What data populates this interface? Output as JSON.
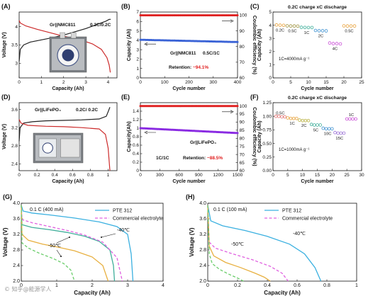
{
  "watermark": "© 知乎@能源学人",
  "chart_data": [
    {
      "id": "A",
      "panel_label": "(A)",
      "type": "line",
      "xlabel": "Capacity (Ah)",
      "ylabel": "Voltage (V)",
      "xlim": [
        0,
        4.4
      ],
      "ylim": [
        2.6,
        4.4
      ],
      "xticks": [
        0,
        1,
        2,
        3,
        4
      ],
      "yticks": [
        3.0,
        3.5,
        4.0
      ],
      "annotations": [
        "Gr||NMC811",
        "0.2C/0.2C"
      ],
      "series": [
        {
          "role": "charge",
          "color": "#222222",
          "x": [
            0,
            0.05,
            0.2,
            0.5,
            1.0,
            1.5,
            2.0,
            2.5,
            3.0,
            3.5,
            3.9,
            4.05,
            4.12
          ],
          "y": [
            3.05,
            3.38,
            3.5,
            3.58,
            3.64,
            3.7,
            3.77,
            3.86,
            3.95,
            4.06,
            4.15,
            4.2,
            4.2
          ]
        },
        {
          "role": "discharge",
          "color": "#cc2a2a",
          "x": [
            0,
            0.05,
            0.3,
            0.8,
            1.3,
            1.8,
            2.3,
            2.8,
            3.3,
            3.7,
            3.95,
            4.05,
            4.1
          ],
          "y": [
            4.17,
            4.1,
            4.02,
            3.93,
            3.85,
            3.77,
            3.7,
            3.63,
            3.53,
            3.38,
            3.15,
            2.95,
            2.75
          ]
        }
      ]
    },
    {
      "id": "B",
      "panel_label": "(B)",
      "type": "scatter",
      "xlabel": "Cycle number",
      "ylabel": "Capacity (Ah)",
      "y2label": "Coulombic efficiency (%)",
      "xlim": [
        0,
        400
      ],
      "ylim": [
        0,
        7
      ],
      "y2lim": [
        60,
        102
      ],
      "xticks": [
        0,
        100,
        200,
        300,
        400
      ],
      "yticks": [
        0,
        1,
        2,
        3,
        4,
        5,
        6,
        7
      ],
      "y2ticks": [
        60,
        70,
        80,
        90,
        100
      ],
      "annotations": [
        "Gr||NMC811",
        "0.5C/1C"
      ],
      "retention_label": "Retention: ",
      "retention_value": "~94.1%",
      "series": [
        {
          "role": "capacity",
          "axis": "left",
          "color": "#3a63d6",
          "x": [
            0,
            400
          ],
          "y": [
            4.05,
            3.81
          ]
        },
        {
          "role": "coulombic-efficiency",
          "axis": "right",
          "color": "#e02020",
          "x": [
            0,
            400
          ],
          "y": [
            99.9,
            99.9
          ]
        }
      ]
    },
    {
      "id": "C",
      "panel_label": "(C)",
      "type": "scatter",
      "title": "0.2C charge   xC discharge",
      "xlabel": "Cycle number",
      "ylabel": "Capacity (Ah)",
      "xlim": [
        0,
        25
      ],
      "ylim": [
        0,
        5
      ],
      "xticks": [
        0,
        5,
        10,
        15,
        20,
        25
      ],
      "yticks": [
        0,
        1,
        2,
        3,
        4,
        5
      ],
      "annotations": [
        "1C=4000mA g⁻¹"
      ],
      "groups": [
        {
          "label": "0.2C",
          "color": "#e8a13a",
          "x": [
            1,
            2,
            3
          ],
          "y": [
            4.02,
            4.0,
            3.99
          ]
        },
        {
          "label": "0.5C",
          "color": "#9b8f3a",
          "x": [
            4,
            5,
            6,
            7
          ],
          "y": [
            3.95,
            3.94,
            3.94,
            3.93
          ]
        },
        {
          "label": "1C",
          "color": "#3fae9a",
          "x": [
            8,
            9,
            10,
            11
          ],
          "y": [
            3.84,
            3.83,
            3.82,
            3.82
          ]
        },
        {
          "label": "2C",
          "color": "#3a8fd0",
          "x": [
            12,
            13,
            14,
            15
          ],
          "y": [
            3.6,
            3.58,
            3.58,
            3.57
          ]
        },
        {
          "label": "4C",
          "color": "#c94fd6",
          "x": [
            16,
            17,
            18,
            19
          ],
          "y": [
            2.65,
            2.6,
            2.6,
            2.58
          ]
        },
        {
          "label": "0.5C",
          "color": "#e8a13a",
          "x": [
            20,
            21,
            22,
            23
          ],
          "y": [
            3.95,
            3.94,
            3.94,
            3.94
          ]
        }
      ]
    },
    {
      "id": "D",
      "panel_label": "(D)",
      "type": "line",
      "xlabel": "Capacity (Ah)",
      "ylabel": "Voltage (V)",
      "xlim": [
        0,
        1.1
      ],
      "ylim": [
        2.25,
        3.75
      ],
      "xticks": [
        0,
        0.2,
        0.4,
        0.6,
        0.8,
        1.0
      ],
      "yticks": [
        2.4,
        2.8,
        3.2,
        3.6
      ],
      "annotations": [
        "Gr||LiFePO₄",
        "0.2C/ 0.2C"
      ],
      "series": [
        {
          "role": "charge",
          "color": "#222222",
          "x": [
            0,
            0.01,
            0.05,
            0.15,
            0.3,
            0.5,
            0.7,
            0.9,
            0.98,
            1.0,
            1.02
          ],
          "y": [
            2.9,
            3.2,
            3.3,
            3.33,
            3.35,
            3.36,
            3.37,
            3.39,
            3.45,
            3.55,
            3.65
          ]
        },
        {
          "role": "discharge",
          "color": "#cc2a2a",
          "x": [
            0,
            0.02,
            0.1,
            0.3,
            0.5,
            0.7,
            0.9,
            0.97,
            1.0,
            1.02
          ],
          "y": [
            3.38,
            3.3,
            3.25,
            3.23,
            3.22,
            3.2,
            3.17,
            3.05,
            2.75,
            2.25
          ]
        }
      ]
    },
    {
      "id": "E",
      "panel_label": "(E)",
      "type": "scatter",
      "xlabel": "Cycle number",
      "ylabel": "Capacity(Ah)",
      "y2label": "Coulombic efficiency (%)",
      "xlim": [
        0,
        1500
      ],
      "ylim": [
        0,
        1.6
      ],
      "y2lim": [
        60,
        102
      ],
      "xticks": [
        0,
        300,
        600,
        900,
        1200,
        1500
      ],
      "yticks": [
        0,
        0.2,
        0.4,
        0.6,
        0.8,
        1.0,
        1.2,
        1.4
      ],
      "y2ticks": [
        60,
        65,
        70,
        75,
        80,
        85,
        90,
        95,
        100
      ],
      "annotations": [
        "Gr||LiFePO₄",
        "1C/1C"
      ],
      "retention_label": "Retention: ",
      "retention_value": "~88.5%",
      "series": [
        {
          "role": "capacity",
          "axis": "left",
          "color": "#8a2be2",
          "x": [
            0,
            1500
          ],
          "y": [
            1.0,
            0.885
          ]
        },
        {
          "role": "coulombic-efficiency",
          "axis": "right",
          "color": "#e02020",
          "x": [
            0,
            1500
          ],
          "y": [
            99.9,
            99.9
          ]
        }
      ]
    },
    {
      "id": "F",
      "panel_label": "(F)",
      "type": "scatter",
      "title": "0.2C charge   xC discharge",
      "xlabel": "Cycle number",
      "ylabel": "Capacity (Ah)",
      "xlim": [
        0,
        30
      ],
      "ylim": [
        0,
        1.25
      ],
      "xticks": [
        0,
        5,
        10,
        15,
        20,
        25,
        30
      ],
      "yticks": [
        0,
        0.25,
        0.5,
        0.75,
        1.0,
        1.25
      ],
      "ytick_labels": [
        "0.00",
        "0.25",
        "0.50",
        "0.75",
        "1.00",
        "1.25"
      ],
      "annotations": [
        "1C=1000mA g⁻¹"
      ],
      "groups": [
        {
          "label": "0.5C",
          "color": "#e07070",
          "x": [
            1,
            2,
            3,
            4
          ],
          "y": [
            1.0,
            1.0,
            0.99,
            0.99
          ]
        },
        {
          "label": "1C",
          "color": "#e8a13a",
          "x": [
            5,
            6,
            7,
            8
          ],
          "y": [
            0.97,
            0.96,
            0.96,
            0.96
          ]
        },
        {
          "label": "2C",
          "color": "#b8b040",
          "x": [
            9,
            10,
            11,
            12
          ],
          "y": [
            0.93,
            0.92,
            0.92,
            0.92
          ]
        },
        {
          "label": "5C",
          "color": "#3fae9a",
          "x": [
            13,
            14,
            15,
            16
          ],
          "y": [
            0.85,
            0.84,
            0.84,
            0.84
          ]
        },
        {
          "label": "10C",
          "color": "#3a8fd0",
          "x": [
            17,
            18,
            19,
            20
          ],
          "y": [
            0.78,
            0.77,
            0.77,
            0.77
          ]
        },
        {
          "label": "15C",
          "color": "#9a70d6",
          "x": [
            21,
            22,
            23,
            24
          ],
          "y": [
            0.7,
            0.69,
            0.69,
            0.69
          ]
        },
        {
          "label": "1C",
          "color": "#c94fd6",
          "x": [
            25,
            26,
            27,
            28
          ],
          "y": [
            0.95,
            0.95,
            0.95,
            0.95
          ]
        }
      ]
    },
    {
      "id": "G",
      "panel_label": "(G)",
      "type": "line",
      "xlabel": "Capacity (Ah)",
      "ylabel": "Voltage (V)",
      "xlim": [
        0,
        4.0
      ],
      "ylim": [
        2.0,
        4.0
      ],
      "xticks": [
        0,
        1,
        2,
        3,
        4
      ],
      "yticks": [
        2.0,
        2.4,
        2.8,
        3.2,
        3.6,
        4.0
      ],
      "ytick_labels": [
        "2.0",
        "2.4",
        "2.8",
        "3.2",
        "3.6",
        "4.0"
      ],
      "annotations": [
        "0.1 C (400 mA)",
        "-40℃",
        "-50℃"
      ],
      "legend": [
        {
          "label": "PTE 312",
          "color": "#3ab0e0",
          "dash": false
        },
        {
          "label": "Commercial electrolyte",
          "color": "#e060e0",
          "dash": true
        }
      ],
      "series": [
        {
          "role": "rt-pte",
          "color": "#3ab0e0",
          "dash": false,
          "x": [
            0,
            0.05,
            0.3,
            0.8,
            1.5,
            2.2,
            2.7,
            3.0,
            3.1,
            3.15
          ],
          "y": [
            3.95,
            3.8,
            3.75,
            3.7,
            3.62,
            3.52,
            3.4,
            3.2,
            2.7,
            2.0
          ]
        },
        {
          "role": "m40-pte",
          "color": "#3fae9a",
          "dash": false,
          "x": [
            0,
            0.02,
            0.3,
            0.8,
            1.3,
            1.8,
            2.2,
            2.5,
            2.6,
            2.63
          ],
          "y": [
            3.95,
            3.45,
            3.38,
            3.32,
            3.25,
            3.15,
            3.02,
            2.8,
            2.4,
            2.0
          ]
        },
        {
          "role": "m40-commercial",
          "color": "#e060e0",
          "dash": true,
          "x": [
            0,
            0.02,
            0.3,
            0.8,
            1.3,
            1.8,
            2.3,
            2.7,
            2.85
          ],
          "y": [
            3.95,
            3.58,
            3.5,
            3.4,
            3.3,
            3.18,
            3.0,
            2.6,
            2.0
          ]
        },
        {
          "role": "m50-pte",
          "color": "#e8b040",
          "dash": false,
          "x": [
            0,
            0.02,
            0.2,
            0.6,
            1.0,
            1.5,
            2.0,
            2.3,
            2.45
          ],
          "y": [
            3.95,
            3.2,
            3.05,
            2.95,
            2.88,
            2.78,
            2.62,
            2.4,
            2.0
          ]
        },
        {
          "role": "m50-commercial",
          "color": "#6acd6a",
          "dash": true,
          "x": [
            0,
            0.02,
            0.2,
            0.5,
            0.9,
            1.2,
            1.4,
            1.5
          ],
          "y": [
            3.95,
            2.98,
            2.85,
            2.72,
            2.58,
            2.45,
            2.28,
            2.0
          ]
        }
      ]
    },
    {
      "id": "H",
      "panel_label": "(H)",
      "type": "line",
      "xlabel": "Capacity (Ah)",
      "ylabel": "Voltage (V)",
      "xlim": [
        0,
        1.0
      ],
      "ylim": [
        2.0,
        4.0
      ],
      "xticks": [
        0,
        0.2,
        0.4,
        0.6,
        0.8,
        1.0
      ],
      "yticks": [
        2.0,
        2.4,
        2.8,
        3.2,
        3.6,
        4.0
      ],
      "ytick_labels": [
        "2.0",
        "2.4",
        "2.8",
        "3.2",
        "3.6",
        "4.0"
      ],
      "annotations": [
        "0.1 C (100 mA)",
        "-40℃",
        "-50℃"
      ],
      "legend": [
        {
          "label": "PTE 312",
          "color": "#3ab0e0",
          "dash": false
        },
        {
          "label": "Commercial electrolyte",
          "color": "#e060e0",
          "dash": true
        }
      ],
      "series": [
        {
          "role": "m40-pte",
          "color": "#3ab0e0",
          "dash": false,
          "x": [
            0,
            0.02,
            0.1,
            0.25,
            0.4,
            0.55,
            0.65,
            0.72,
            0.76
          ],
          "y": [
            3.95,
            3.55,
            3.42,
            3.3,
            3.15,
            2.95,
            2.7,
            2.35,
            2.0
          ]
        },
        {
          "role": "m40-commercial",
          "color": "#e060e0",
          "dash": true,
          "x": [
            0,
            0.01,
            0.05,
            0.15,
            0.3,
            0.42,
            0.5,
            0.54
          ],
          "y": [
            3.95,
            3.0,
            2.85,
            2.72,
            2.55,
            2.38,
            2.2,
            2.0
          ]
        },
        {
          "role": "m50-pte",
          "color": "#e8b040",
          "dash": false,
          "x": [
            0,
            0.01,
            0.04,
            0.12,
            0.22,
            0.32,
            0.38,
            0.42
          ],
          "y": [
            3.95,
            2.9,
            2.65,
            2.48,
            2.35,
            2.2,
            2.1,
            2.0
          ]
        },
        {
          "role": "m50-commercial",
          "color": "#6acd6a",
          "dash": true,
          "x": [
            0,
            0.01,
            0.03,
            0.08,
            0.14,
            0.2,
            0.24
          ],
          "y": [
            3.95,
            2.7,
            2.45,
            2.3,
            2.18,
            2.08,
            2.0
          ]
        }
      ]
    }
  ]
}
